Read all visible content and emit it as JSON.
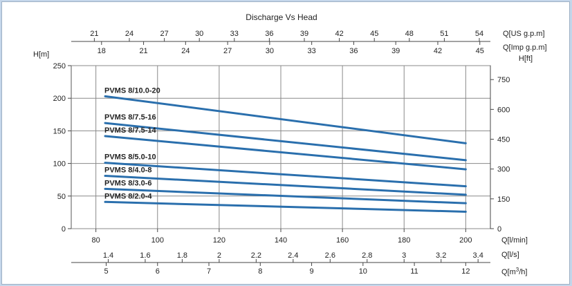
{
  "chart_data": {
    "type": "line",
    "title": "Discharge Vs Head",
    "colors": {
      "line": "#2a6fad",
      "grid": "#888888",
      "plot_bg": "#ffffff",
      "page_bg": "#c4d6ea"
    },
    "x_primary": {
      "label": "Q[l/min]",
      "range": [
        72,
        208
      ],
      "ticks": [
        80,
        100,
        120,
        140,
        160,
        180,
        200
      ],
      "grid_at": [
        80,
        100,
        120,
        140,
        160,
        180,
        200
      ]
    },
    "x_secondary": [
      {
        "label": "Q[l/s]",
        "ticks": [
          1.4,
          1.6,
          1.8,
          2,
          2.2,
          2.4,
          2.6,
          2.8,
          3,
          3.2,
          3.4
        ]
      },
      {
        "label": "Q[m3/h]",
        "label_main": "Q[m",
        "label_sup": "3",
        "label_tail": "/h]",
        "ticks": [
          5,
          6,
          7,
          8,
          9,
          10,
          11,
          12
        ]
      },
      {
        "label": "Q[US g.p.m]",
        "ticks": [
          21,
          24,
          27,
          30,
          33,
          36,
          39,
          42,
          45,
          48,
          51,
          54
        ]
      },
      {
        "label": "Q[Imp g.p.m]",
        "ticks": [
          18,
          21,
          24,
          27,
          30,
          33,
          36,
          39,
          42,
          45
        ]
      }
    ],
    "y_left": {
      "label": "H[m]",
      "range": [
        0,
        250
      ],
      "ticks": [
        0,
        50,
        100,
        150,
        200,
        250
      ]
    },
    "y_right": {
      "label": "H[ft]",
      "ticks": [
        0,
        150,
        300,
        450,
        600,
        750
      ]
    },
    "grid": true,
    "series": [
      {
        "name": "PVMS 8/10.0-20",
        "x": [
          83,
          200
        ],
        "y": [
          203,
          131
        ]
      },
      {
        "name": "PVMS 8/7.5-16",
        "x": [
          83,
          200
        ],
        "y": [
          162,
          105
        ]
      },
      {
        "name": "PVMS 8/7.5-14",
        "x": [
          83,
          200
        ],
        "y": [
          142,
          91
        ]
      },
      {
        "name": "PVMS 8/5.0-10",
        "x": [
          83,
          200
        ],
        "y": [
          101,
          65
        ]
      },
      {
        "name": "PVMS 8/4.0-8",
        "x": [
          83,
          200
        ],
        "y": [
          81,
          52
        ]
      },
      {
        "name": "PVMS 8/3.0-6",
        "x": [
          83,
          200
        ],
        "y": [
          61,
          39
        ]
      },
      {
        "name": "PVMS 8/2.0-4",
        "x": [
          83,
          200
        ],
        "y": [
          41,
          26
        ]
      }
    ]
  }
}
